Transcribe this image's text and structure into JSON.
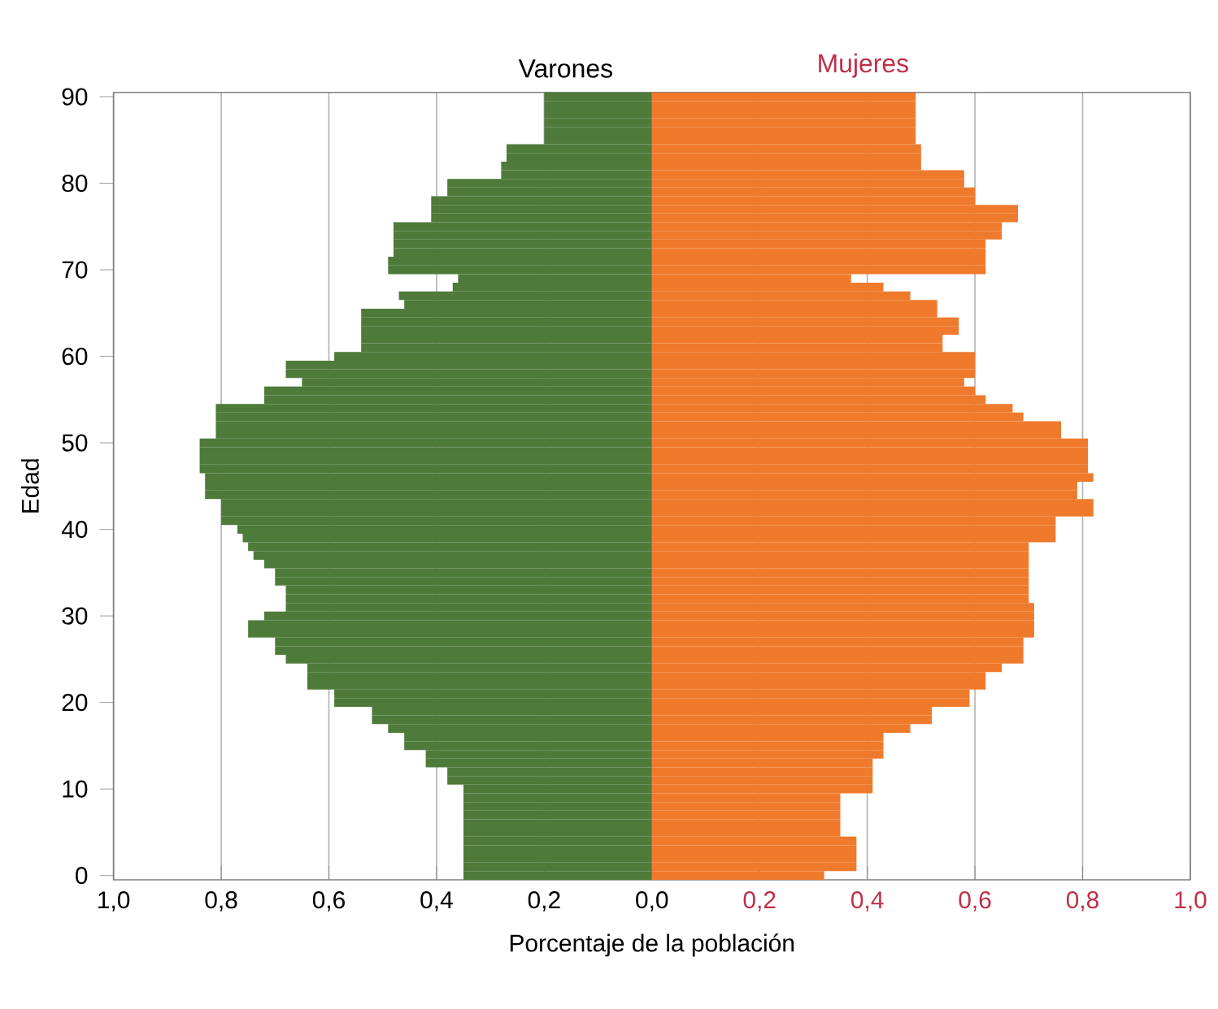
{
  "chart_data": {
    "type": "bar",
    "orientation": "horizontal",
    "xlabel": "Porcentaje de la población",
    "ylabel": "Edad",
    "categories": [
      "90",
      null,
      null,
      null,
      null,
      null,
      null,
      null,
      null,
      null,
      "80",
      null,
      null,
      null,
      null,
      null,
      null,
      null,
      null,
      null,
      "70",
      null,
      null,
      null,
      null,
      null,
      null,
      null,
      null,
      null,
      "60",
      null,
      null,
      null,
      null,
      null,
      null,
      null,
      null,
      null,
      "50",
      null,
      null,
      null,
      null,
      null,
      null,
      null,
      null,
      null,
      "40",
      null,
      null,
      null,
      null,
      null,
      null,
      null,
      null,
      null,
      "30",
      null,
      null,
      null,
      null,
      null,
      null,
      null,
      null,
      null,
      "20",
      null,
      null,
      null,
      null,
      null,
      null,
      null,
      null,
      null,
      "10",
      null,
      null,
      null,
      null,
      null,
      null,
      null,
      null,
      null,
      "0"
    ],
    "series": [
      {
        "name": "Varones",
        "color": "#4e7a3a",
        "values": [
          -0.2,
          -0.2,
          -0.2,
          -0.2,
          -0.2,
          -0.2,
          -0.27,
          -0.27,
          -0.28,
          -0.28,
          -0.38,
          -0.38,
          -0.41,
          -0.41,
          -0.41,
          -0.48,
          -0.48,
          -0.48,
          -0.48,
          -0.49,
          -0.49,
          -0.36,
          -0.37,
          -0.47,
          -0.46,
          -0.54,
          -0.54,
          -0.54,
          -0.54,
          -0.54,
          -0.59,
          -0.68,
          -0.68,
          -0.65,
          -0.72,
          -0.72,
          -0.81,
          -0.81,
          -0.81,
          -0.81,
          -0.84,
          -0.84,
          -0.84,
          -0.84,
          -0.83,
          -0.83,
          -0.83,
          -0.8,
          -0.8,
          -0.8,
          -0.77,
          -0.76,
          -0.75,
          -0.74,
          -0.72,
          -0.7,
          -0.7,
          -0.68,
          -0.68,
          -0.68,
          -0.72,
          -0.75,
          -0.75,
          -0.7,
          -0.7,
          -0.68,
          -0.64,
          -0.64,
          -0.64,
          -0.59,
          -0.59,
          -0.52,
          -0.52,
          -0.49,
          -0.46,
          -0.46,
          -0.42,
          -0.42,
          -0.38,
          -0.38,
          -0.35,
          -0.35,
          -0.35,
          -0.35,
          -0.35,
          -0.35,
          -0.35,
          -0.35,
          -0.35,
          -0.35,
          -0.35
        ]
      },
      {
        "name": "Mujeres",
        "color": "#ef7a2c",
        "values": [
          0.49,
          0.49,
          0.49,
          0.49,
          0.49,
          0.49,
          0.5,
          0.5,
          0.5,
          0.58,
          0.58,
          0.6,
          0.6,
          0.68,
          0.68,
          0.65,
          0.65,
          0.62,
          0.62,
          0.62,
          0.62,
          0.37,
          0.43,
          0.48,
          0.53,
          0.53,
          0.57,
          0.57,
          0.54,
          0.54,
          0.6,
          0.6,
          0.6,
          0.58,
          0.6,
          0.62,
          0.67,
          0.69,
          0.76,
          0.76,
          0.81,
          0.81,
          0.81,
          0.81,
          0.82,
          0.79,
          0.79,
          0.82,
          0.82,
          0.75,
          0.75,
          0.75,
          0.7,
          0.7,
          0.7,
          0.7,
          0.7,
          0.7,
          0.7,
          0.71,
          0.71,
          0.71,
          0.71,
          0.69,
          0.69,
          0.69,
          0.65,
          0.62,
          0.62,
          0.59,
          0.59,
          0.52,
          0.52,
          0.48,
          0.43,
          0.43,
          0.43,
          0.41,
          0.41,
          0.41,
          0.41,
          0.35,
          0.35,
          0.35,
          0.35,
          0.35,
          0.38,
          0.38,
          0.38,
          0.38,
          0.32
        ]
      }
    ],
    "xlim": [
      -1,
      1
    ],
    "xticks": [
      {
        "value": -1,
        "label": "1,0"
      },
      {
        "value": -0.8,
        "label": "0,8"
      },
      {
        "value": -0.6,
        "label": "0,6"
      },
      {
        "value": -0.4,
        "label": "0,4"
      },
      {
        "value": -0.2,
        "label": "0,2"
      },
      {
        "value": 0,
        "label": "0,0"
      },
      {
        "value": 0.2,
        "label": "0,2"
      },
      {
        "value": 0.4,
        "label": "0,4"
      },
      {
        "value": 0.6,
        "label": "0,6"
      },
      {
        "value": 0.8,
        "label": "0,8"
      },
      {
        "value": 1,
        "label": "1,0"
      }
    ],
    "grid": "x",
    "stacked": true
  }
}
